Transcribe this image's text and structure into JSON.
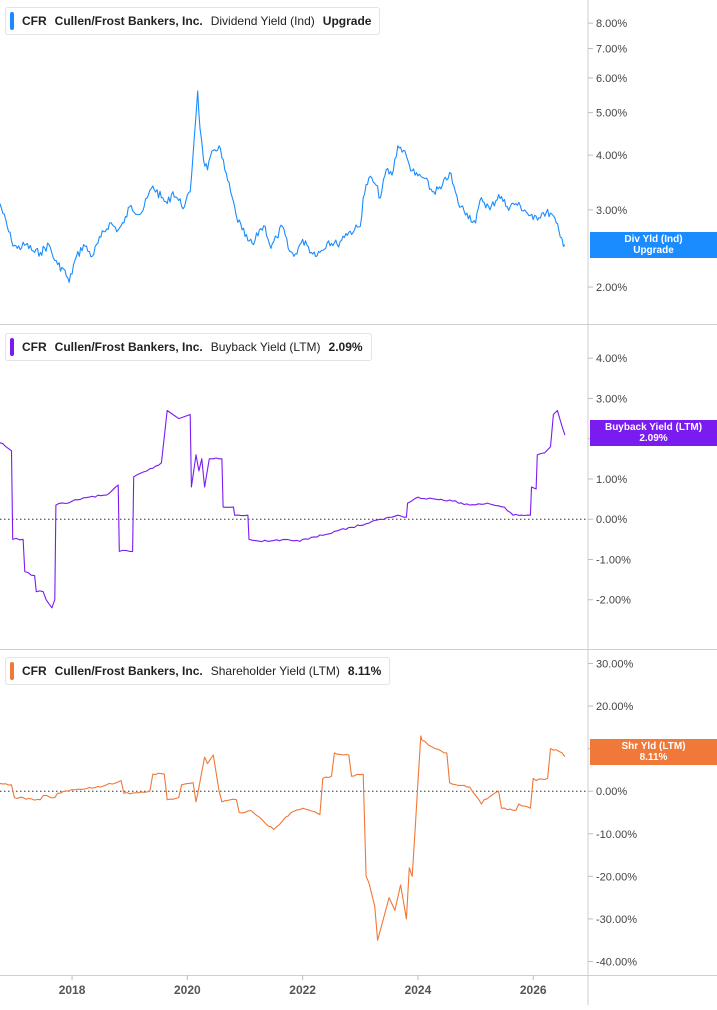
{
  "chart_data": [
    {
      "type": "line",
      "ticker": "CFR",
      "company": "Cullen/Frost Bankers, Inc.",
      "metric": "Dividend Yield (Ind)",
      "value_label": "Upgrade",
      "flag_line1": "Div Yld (Ind)",
      "flag_line2": "Upgrade",
      "color": "#1a8cff",
      "scale": "log",
      "ylim": [
        1.7,
        8.8
      ],
      "yticks": [
        2,
        3,
        4,
        5,
        6,
        7,
        8
      ],
      "ytick_labels": [
        "2.00%",
        "3.00%",
        "4.00%",
        "5.00%",
        "6.00%",
        "7.00%",
        "8.00%"
      ],
      "zero_line": false,
      "x": [
        2016.75,
        2016.95,
        2017.05,
        2017.2,
        2017.35,
        2017.45,
        2017.6,
        2017.7,
        2017.75,
        2017.85,
        2017.95,
        2018.05,
        2018.2,
        2018.35,
        2018.5,
        2018.65,
        2018.8,
        2018.9,
        2019.0,
        2019.2,
        2019.4,
        2019.55,
        2019.65,
        2019.75,
        2019.85,
        2019.95,
        2020.05,
        2020.12,
        2020.18,
        2020.22,
        2020.28,
        2020.35,
        2020.45,
        2020.55,
        2020.65,
        2020.75,
        2020.85,
        2020.95,
        2021.05,
        2021.15,
        2021.25,
        2021.35,
        2021.45,
        2021.55,
        2021.65,
        2021.75,
        2021.85,
        2021.95,
        2022.05,
        2022.15,
        2022.3,
        2022.45,
        2022.6,
        2022.75,
        2022.9,
        2023.0,
        2023.05,
        2023.15,
        2023.25,
        2023.35,
        2023.45,
        2023.55,
        2023.65,
        2023.75,
        2023.85,
        2023.95,
        2024.1,
        2024.25,
        2024.4,
        2024.55,
        2024.7,
        2024.85,
        2025.0,
        2025.1,
        2025.25,
        2025.4,
        2025.55,
        2025.7,
        2025.85,
        2026.0,
        2026.15,
        2026.3,
        2026.4,
        2026.47,
        2026.55
      ],
      "y": [
        3.1,
        2.55,
        2.45,
        2.5,
        2.4,
        2.4,
        2.5,
        2.3,
        2.25,
        2.2,
        2.05,
        2.3,
        2.5,
        2.35,
        2.6,
        2.8,
        2.7,
        2.8,
        3.05,
        2.95,
        3.4,
        3.2,
        3.1,
        3.3,
        3.15,
        3.05,
        3.3,
        4.4,
        5.6,
        4.6,
        3.9,
        3.7,
        4.1,
        4.2,
        3.7,
        3.3,
        2.9,
        2.7,
        2.55,
        2.5,
        2.7,
        2.75,
        2.45,
        2.6,
        2.75,
        2.45,
        2.35,
        2.5,
        2.55,
        2.4,
        2.4,
        2.55,
        2.5,
        2.65,
        2.7,
        2.75,
        3.2,
        3.55,
        3.45,
        3.2,
        3.7,
        3.6,
        4.2,
        4.1,
        3.8,
        3.6,
        3.55,
        3.3,
        3.35,
        3.65,
        3.1,
        2.95,
        2.8,
        3.2,
        3.0,
        3.25,
        3.05,
        3.1,
        3.0,
        2.85,
        2.95,
        2.95,
        2.8,
        2.6,
        2.5
      ]
    },
    {
      "type": "line",
      "ticker": "CFR",
      "company": "Cullen/Frost Bankers, Inc.",
      "metric": "Buyback Yield (LTM)",
      "value_label": "2.09%",
      "flag_line1": "Buyback Yield (LTM)",
      "flag_line2": "2.09%",
      "color": "#7a1cf0",
      "scale": "linear",
      "ylim": [
        -3.0,
        4.7
      ],
      "yticks": [
        -2,
        -1,
        0,
        1,
        2,
        3,
        4
      ],
      "ytick_labels": [
        "-2.00%",
        "-1.00%",
        "0.00%",
        "1.00%",
        "2.00%",
        "3.00%",
        "4.00%"
      ],
      "zero_line": true,
      "x": [
        2016.75,
        2016.95,
        2016.97,
        2017.15,
        2017.18,
        2017.35,
        2017.38,
        2017.5,
        2017.55,
        2017.6,
        2017.65,
        2017.7,
        2017.72,
        2018.0,
        2018.3,
        2018.6,
        2018.8,
        2018.82,
        2019.0,
        2019.05,
        2019.07,
        2019.3,
        2019.55,
        2019.65,
        2019.75,
        2019.85,
        2019.95,
        2020.05,
        2020.07,
        2020.12,
        2020.15,
        2020.2,
        2020.25,
        2020.3,
        2020.38,
        2020.45,
        2020.6,
        2020.62,
        2020.8,
        2020.82,
        2021.05,
        2021.07,
        2021.4,
        2021.7,
        2021.95,
        2022.15,
        2022.35,
        2022.55,
        2022.85,
        2023.15,
        2023.35,
        2023.55,
        2023.65,
        2023.8,
        2023.82,
        2024.0,
        2024.3,
        2024.6,
        2024.9,
        2025.2,
        2025.5,
        2025.65,
        2025.8,
        2025.95,
        2025.97,
        2026.05,
        2026.07,
        2026.2,
        2026.3,
        2026.35,
        2026.42,
        2026.5,
        2026.55
      ],
      "y": [
        1.9,
        1.7,
        -0.5,
        -0.5,
        -1.3,
        -1.4,
        -1.8,
        -1.8,
        -2.0,
        -2.1,
        -2.2,
        -2.0,
        0.35,
        0.45,
        0.55,
        0.6,
        0.85,
        -0.8,
        -0.8,
        -0.8,
        1.05,
        1.2,
        1.4,
        2.7,
        2.6,
        2.5,
        2.55,
        2.6,
        0.8,
        1.3,
        1.6,
        1.2,
        1.5,
        0.8,
        1.5,
        1.5,
        1.5,
        0.3,
        0.3,
        0.1,
        0.1,
        -0.5,
        -0.55,
        -0.5,
        -0.55,
        -0.45,
        -0.4,
        -0.3,
        -0.2,
        -0.1,
        0.0,
        0.05,
        0.1,
        0.05,
        0.4,
        0.55,
        0.5,
        0.45,
        0.35,
        0.4,
        0.3,
        0.1,
        0.1,
        0.1,
        0.8,
        0.75,
        1.6,
        1.65,
        1.8,
        2.6,
        2.7,
        2.3,
        2.09
      ]
    },
    {
      "type": "line",
      "ticker": "CFR",
      "company": "Cullen/Frost Bankers, Inc.",
      "metric": "Shareholder Yield (LTM)",
      "value_label": "8.11%",
      "flag_line1": "Shr Yld (LTM)",
      "flag_line2": "8.11%",
      "color": "#f07838",
      "scale": "linear",
      "ylim": [
        -42,
        32
      ],
      "yticks": [
        -40,
        -30,
        -20,
        -10,
        0,
        10,
        20,
        30
      ],
      "ytick_labels": [
        "-40.00%",
        "-30.00%",
        "-20.00%",
        "-10.00%",
        "0.00%",
        "10.00%",
        "20.00%",
        "30.00%"
      ],
      "zero_line": true,
      "x": [
        2016.75,
        2016.95,
        2017.0,
        2017.45,
        2017.5,
        2017.7,
        2017.75,
        2018.1,
        2018.5,
        2018.6,
        2018.85,
        2018.9,
        2019.35,
        2019.4,
        2019.6,
        2019.65,
        2019.85,
        2019.9,
        2020.1,
        2020.15,
        2020.3,
        2020.35,
        2020.45,
        2020.55,
        2020.6,
        2020.85,
        2020.9,
        2021.1,
        2021.35,
        2021.5,
        2021.65,
        2021.8,
        2022.0,
        2022.3,
        2022.35,
        2022.5,
        2022.55,
        2022.8,
        2022.85,
        2023.05,
        2023.1,
        2023.15,
        2023.25,
        2023.3,
        2023.4,
        2023.5,
        2023.6,
        2023.7,
        2023.8,
        2023.85,
        2023.9,
        2024.05,
        2024.07,
        2024.3,
        2024.5,
        2024.55,
        2024.9,
        2025.1,
        2025.15,
        2025.4,
        2025.45,
        2025.7,
        2025.75,
        2025.95,
        2026.0,
        2026.05,
        2026.25,
        2026.3,
        2026.5,
        2026.55
      ],
      "y": [
        1.8,
        1.5,
        -1.5,
        -2.0,
        -1.0,
        -1.5,
        -0.5,
        0.5,
        1.0,
        1.5,
        2.5,
        -0.5,
        0.0,
        4.0,
        4.0,
        -2.0,
        -1.5,
        1.5,
        2.0,
        -2.5,
        8.0,
        6.5,
        8.5,
        0.0,
        -2.5,
        -2.0,
        -5.0,
        -4.5,
        -7.5,
        -9.0,
        -7.0,
        -5.0,
        -4.0,
        -5.5,
        3.0,
        3.5,
        9.0,
        8.5,
        3.5,
        4.0,
        -20.0,
        -21.5,
        -27.0,
        -35.0,
        -30.0,
        -25.0,
        -28.0,
        -22.0,
        -30.0,
        -18.0,
        -20.0,
        13.0,
        12.0,
        10.0,
        9.0,
        2.0,
        1.0,
        -3.0,
        -2.0,
        0.0,
        -4.0,
        -4.5,
        -3.0,
        -4.0,
        3.0,
        2.5,
        3.0,
        10.0,
        9.0,
        8.11
      ]
    }
  ],
  "x_axis": {
    "tick_labels": [
      "2018",
      "2020",
      "2022",
      "2024",
      "2026"
    ],
    "tick_values": [
      2018,
      2020,
      2022,
      2024,
      2026
    ],
    "range": [
      2016.75,
      2026.95
    ]
  }
}
